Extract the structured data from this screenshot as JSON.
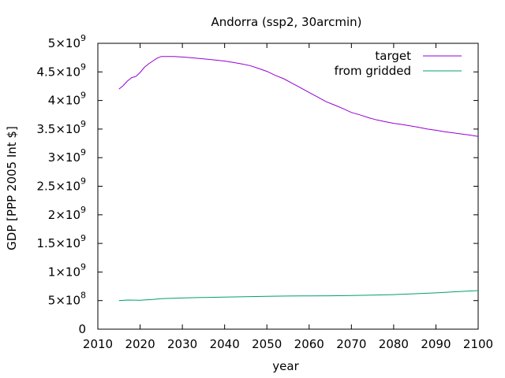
{
  "chart_data": {
    "type": "line",
    "title": "Andorra (ssp2, 30arcmin)",
    "xlabel": "year",
    "ylabel": "GDP [PPP 2005 Int $]",
    "xlim": [
      2010,
      2100
    ],
    "ylim": [
      0,
      5000000000
    ],
    "legend_position": "top-right",
    "grid": false,
    "x_ticks": [
      2010,
      2020,
      2030,
      2040,
      2050,
      2060,
      2070,
      2080,
      2090,
      2100
    ],
    "x_tick_labels": [
      "2010",
      "2020",
      "2030",
      "2040",
      "2050",
      "2060",
      "2070",
      "2080",
      "2090",
      "2100"
    ],
    "y_ticks": [
      0,
      500000000,
      1000000000,
      1500000000,
      2000000000,
      2500000000,
      3000000000,
      3500000000,
      4000000000,
      4500000000,
      5000000000
    ],
    "y_tick_labels": [
      {
        "mant": "0",
        "exp": ""
      },
      {
        "mant": "5×10",
        "exp": "8"
      },
      {
        "mant": "1×10",
        "exp": "9"
      },
      {
        "mant": "1.5×10",
        "exp": "9"
      },
      {
        "mant": "2×10",
        "exp": "9"
      },
      {
        "mant": "2.5×10",
        "exp": "9"
      },
      {
        "mant": "3×10",
        "exp": "9"
      },
      {
        "mant": "3.5×10",
        "exp": "9"
      },
      {
        "mant": "4×10",
        "exp": "9"
      },
      {
        "mant": "4.5×10",
        "exp": "9"
      },
      {
        "mant": "5×10",
        "exp": "9"
      }
    ],
    "series": [
      {
        "name": "target",
        "color": "#9400d3",
        "x": [
          2015,
          2016,
          2017,
          2018,
          2019,
          2020,
          2021,
          2022,
          2023,
          2024,
          2025,
          2026,
          2027,
          2028,
          2029,
          2030,
          2032,
          2034,
          2036,
          2038,
          2040,
          2042,
          2044,
          2046,
          2048,
          2050,
          2052,
          2054,
          2056,
          2058,
          2060,
          2062,
          2064,
          2066,
          2068,
          2070,
          2072,
          2074,
          2076,
          2078,
          2080,
          2082,
          2084,
          2086,
          2088,
          2090,
          2092,
          2094,
          2096,
          2098,
          2100
        ],
        "values": [
          4200000000,
          4260000000,
          4340000000,
          4400000000,
          4420000000,
          4490000000,
          4580000000,
          4640000000,
          4690000000,
          4740000000,
          4770000000,
          4770000000,
          4770000000,
          4770000000,
          4765000000,
          4760000000,
          4750000000,
          4735000000,
          4720000000,
          4705000000,
          4690000000,
          4665000000,
          4640000000,
          4610000000,
          4560000000,
          4510000000,
          4440000000,
          4380000000,
          4300000000,
          4220000000,
          4140000000,
          4060000000,
          3980000000,
          3920000000,
          3860000000,
          3790000000,
          3750000000,
          3700000000,
          3660000000,
          3630000000,
          3600000000,
          3580000000,
          3555000000,
          3530000000,
          3500000000,
          3480000000,
          3455000000,
          3435000000,
          3415000000,
          3395000000,
          3370000000
        ]
      },
      {
        "name": "from gridded",
        "color": "#009e73",
        "x": [
          2015,
          2017,
          2020,
          2023,
          2025,
          2030,
          2035,
          2040,
          2045,
          2050,
          2055,
          2060,
          2065,
          2070,
          2075,
          2080,
          2085,
          2090,
          2095,
          2100
        ],
        "values": [
          500000000,
          510000000,
          505000000,
          520000000,
          535000000,
          545000000,
          555000000,
          560000000,
          568000000,
          575000000,
          580000000,
          582000000,
          584000000,
          588000000,
          595000000,
          605000000,
          620000000,
          635000000,
          655000000,
          675000000
        ]
      }
    ]
  }
}
